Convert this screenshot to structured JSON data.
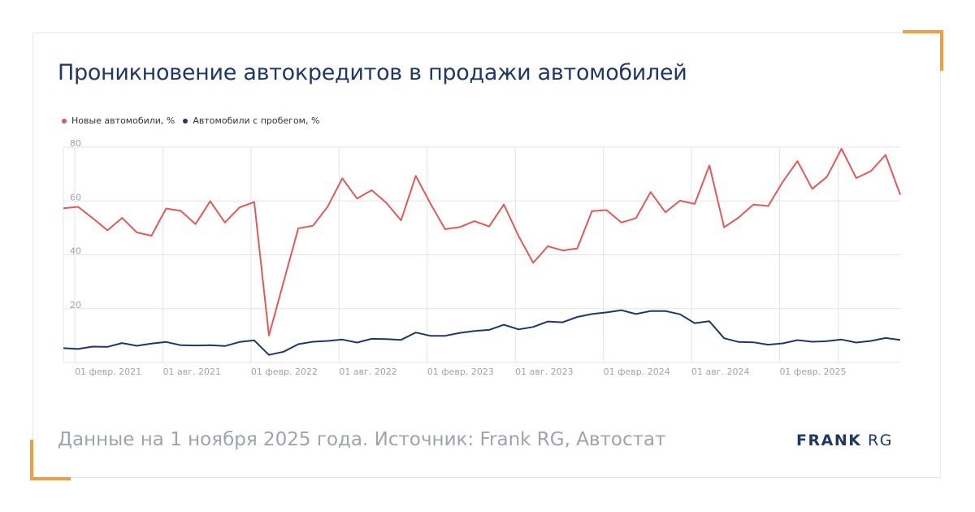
{
  "title": "Проникновение автокредитов в продажи автомобилей",
  "footer": "Данные на 1 ноября 2025 года. Источник: Frank RG, Автостат",
  "logo": {
    "bold": "FRANK",
    "light": "RG"
  },
  "colors": {
    "new": "#e05a5a",
    "used": "#1f3866",
    "accent": "#f29d46",
    "grid": "#e3e3f0",
    "axis_text": "#9ea3ae"
  },
  "chart_data": {
    "type": "line",
    "title": "Проникновение автокредитов в продажи автомобилей",
    "xlabel": "",
    "ylabel": "",
    "ylim": [
      0,
      80
    ],
    "y_ticks": [
      20,
      40,
      60,
      80
    ],
    "x_tick_labels": [
      {
        "label": "01 февр. 2021",
        "index": 1
      },
      {
        "label": "01 авг. 2021",
        "index": 7
      },
      {
        "label": "01 февр. 2022",
        "index": 13
      },
      {
        "label": "01 авг. 2022",
        "index": 19
      },
      {
        "label": "01 февр. 2023",
        "index": 25
      },
      {
        "label": "01 авг. 2023",
        "index": 31
      },
      {
        "label": "01 февр. 2024",
        "index": 37
      },
      {
        "label": "01 авг. 2024",
        "index": 43
      },
      {
        "label": "01 февр. 2025",
        "index": 49
      }
    ],
    "x_start": "2021-01",
    "x_end": "2025-10",
    "legend_position": "top-left",
    "grid": true,
    "series": [
      {
        "name": "Новые автомобили, %",
        "values": [
          57.3,
          57.8,
          53.6,
          49.1,
          53.7,
          48.3,
          47.1,
          57.2,
          56.3,
          51.4,
          59.9,
          52.0,
          57.6,
          59.6,
          10.0,
          30.0,
          49.8,
          50.8,
          57.9,
          68.4,
          60.9,
          64.0,
          59.3,
          52.8,
          69.3,
          59.0,
          49.5,
          50.3,
          52.5,
          50.5,
          58.7,
          47.0,
          37.0,
          43.2,
          41.6,
          42.4,
          56.2,
          56.6,
          52.0,
          53.6,
          63.3,
          55.8,
          60.1,
          58.9,
          73.2,
          50.2,
          53.9,
          58.7,
          58.1,
          67.1,
          74.8,
          64.5,
          68.9,
          79.4,
          68.5,
          71.1,
          77.1,
          62.3
        ]
      },
      {
        "name": "Автомобили с пробегом, %",
        "values": [
          5.3,
          5.0,
          5.9,
          5.8,
          7.2,
          6.2,
          7.0,
          7.6,
          6.4,
          6.3,
          6.4,
          6.1,
          7.6,
          8.2,
          2.8,
          4.0,
          6.8,
          7.7,
          8.0,
          8.5,
          7.4,
          8.8,
          8.7,
          8.4,
          11.1,
          9.9,
          9.9,
          11.0,
          11.7,
          12.1,
          14.0,
          12.3,
          13.2,
          15.2,
          14.9,
          16.9,
          18.0,
          18.6,
          19.4,
          18.0,
          19.1,
          19.1,
          17.9,
          14.6,
          15.3,
          9.0,
          7.6,
          7.5,
          6.6,
          7.1,
          8.3,
          7.7,
          7.9,
          8.5,
          7.4,
          8.0,
          9.1,
          8.4
        ]
      }
    ]
  }
}
